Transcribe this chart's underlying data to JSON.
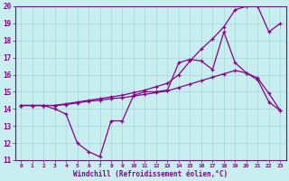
{
  "xlabel": "Windchill (Refroidissement éolien,°C)",
  "xlim": [
    -0.5,
    23.5
  ],
  "ylim": [
    11,
    20
  ],
  "yticks": [
    11,
    12,
    13,
    14,
    15,
    16,
    17,
    18,
    19,
    20
  ],
  "xticks": [
    0,
    1,
    2,
    3,
    4,
    5,
    6,
    7,
    8,
    9,
    10,
    11,
    12,
    13,
    14,
    15,
    16,
    17,
    18,
    19,
    20,
    21,
    22,
    23
  ],
  "bg_color": "#c8eef0",
  "grid_color": "#a0d8dc",
  "line_color": "#880088",
  "line1_x": [
    0,
    1,
    2,
    3,
    4,
    5,
    6,
    7,
    8,
    9,
    10,
    11,
    12,
    13,
    14,
    15,
    16,
    17,
    18,
    19,
    20,
    21,
    22,
    23
  ],
  "line1_y": [
    14.2,
    14.2,
    14.2,
    14.0,
    13.7,
    12.0,
    11.5,
    11.2,
    13.3,
    13.3,
    14.8,
    15.0,
    15.0,
    15.1,
    16.7,
    16.9,
    16.8,
    16.3,
    18.5,
    16.7,
    16.1,
    15.7,
    14.4,
    13.9
  ],
  "line2_x": [
    0,
    1,
    2,
    3,
    4,
    5,
    6,
    7,
    8,
    9,
    10,
    11,
    12,
    13,
    14,
    15,
    16,
    17,
    18,
    19,
    20,
    21,
    22,
    23
  ],
  "line2_y": [
    14.2,
    14.2,
    14.2,
    14.2,
    14.25,
    14.35,
    14.45,
    14.5,
    14.6,
    14.65,
    14.75,
    14.85,
    14.95,
    15.05,
    15.25,
    15.45,
    15.65,
    15.85,
    16.05,
    16.25,
    16.1,
    15.8,
    14.9,
    13.9
  ],
  "line3_x": [
    0,
    1,
    2,
    3,
    4,
    5,
    6,
    7,
    8,
    9,
    10,
    11,
    12,
    13,
    14,
    15,
    16,
    17,
    18,
    19,
    20,
    21,
    22,
    23
  ],
  "line3_y": [
    14.2,
    14.2,
    14.2,
    14.2,
    14.3,
    14.4,
    14.5,
    14.6,
    14.7,
    14.8,
    14.95,
    15.1,
    15.3,
    15.5,
    16.0,
    16.8,
    17.5,
    18.1,
    18.8,
    19.8,
    20.0,
    20.0,
    18.5,
    19.0
  ]
}
